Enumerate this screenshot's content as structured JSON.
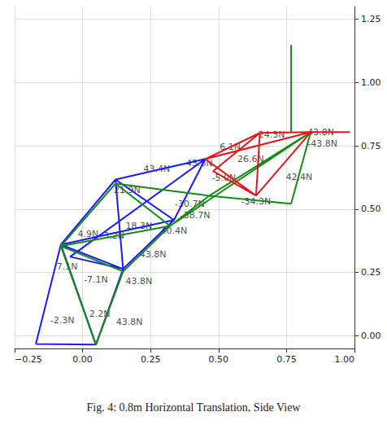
{
  "chart_data": {
    "type": "line",
    "title": "Fig. 4: 0.8m Horizontal Translation, Side View",
    "grid": true,
    "xlim": [
      -0.25,
      1.0
    ],
    "xticks": [
      {
        "value": -0.25,
        "label": "−0.25"
      },
      {
        "value": 0,
        "label": "0.00"
      },
      {
        "value": 0.25,
        "label": "0.25"
      },
      {
        "value": 0.5,
        "label": "0.50"
      },
      {
        "value": 0.75,
        "label": "0.75"
      },
      {
        "value": 1.0,
        "label": "1.00"
      }
    ],
    "ylim": [
      -0.05,
      1.3
    ],
    "yticks": [
      {
        "value": 0,
        "label": "0.00"
      },
      {
        "value": 0.25,
        "label": "0.25"
      },
      {
        "value": 0.5,
        "label": "0.50"
      },
      {
        "value": 0.75,
        "label": "0.75"
      },
      {
        "value": 1.0,
        "label": "1.00"
      },
      {
        "value": 1.25,
        "label": "1.25"
      }
    ],
    "series": [
      {
        "color": "#1a1aff",
        "x": [
          -0.172,
          0.049,
          null,
          -0.172,
          -0.08,
          null,
          0.049,
          -0.08,
          null,
          0.049,
          0.149,
          null,
          -0.08,
          0.149,
          null,
          -0.046,
          0.149,
          null,
          -0.08,
          0.121,
          null,
          0.149,
          0.121,
          null,
          -0.08,
          0.336,
          null,
          0.121,
          0.451,
          null,
          0.121,
          0.336,
          null,
          0.451,
          0.336,
          null,
          0.149,
          0.336,
          null,
          -0.046,
          0.451
        ],
        "values": [
          -0.032,
          -0.035,
          null,
          -0.032,
          0.36,
          null,
          -0.035,
          0.36,
          null,
          -0.035,
          0.264,
          null,
          0.36,
          0.264,
          null,
          0.312,
          0.264,
          null,
          0.36,
          0.617,
          null,
          0.264,
          0.617,
          null,
          0.36,
          0.457,
          null,
          0.617,
          0.698,
          null,
          0.617,
          0.457,
          null,
          0.698,
          0.457,
          null,
          0.264,
          0.457,
          null,
          0.312,
          0.698
        ]
      },
      {
        "color": "#158a15",
        "x": [
          0.049,
          -0.08,
          null,
          0.049,
          0.149,
          null,
          -0.08,
          0.149,
          null,
          -0.08,
          0.121,
          null,
          -0.08,
          0.322,
          null,
          0.149,
          0.322,
          null,
          0.121,
          0.466,
          null,
          0.121,
          0.322,
          null,
          0.466,
          0.322,
          null,
          0.466,
          0.767,
          null,
          0.466,
          0.839,
          null,
          0.767,
          0.839,
          null,
          0.322,
          0.839,
          null,
          0.767,
          0.767
        ],
        "values": [
          -0.035,
          0.354,
          null,
          -0.035,
          0.254,
          null,
          0.354,
          0.254,
          null,
          0.354,
          0.601,
          null,
          0.354,
          0.434,
          null,
          0.254,
          0.434,
          null,
          0.601,
          0.553,
          null,
          0.601,
          0.434,
          null,
          0.553,
          0.434,
          null,
          0.553,
          0.521,
          null,
          0.553,
          0.804,
          null,
          0.521,
          0.804,
          null,
          0.434,
          0.804,
          null,
          1.148,
          0.804
        ]
      },
      {
        "color": "#e8141a",
        "x": [
          0.451,
          0.652,
          null,
          0.652,
          0.839,
          null,
          0.839,
          0.983,
          null,
          0.451,
          0.638,
          null,
          0.652,
          0.638,
          null,
          0.839,
          0.638,
          null,
          0.48,
          0.652,
          null,
          0.48,
          0.638,
          null,
          0.451,
          0.839
        ],
        "values": [
          0.698,
          0.801,
          null,
          0.801,
          0.804,
          null,
          0.804,
          0.804,
          null,
          0.698,
          0.553,
          null,
          0.801,
          0.553,
          null,
          0.804,
          0.553,
          null,
          0.65,
          0.801,
          null,
          0.65,
          0.553,
          null,
          0.698,
          0.804
        ]
      }
    ],
    "annotations": [
      {
        "text": "24.3N",
        "x": 0.695,
        "y": 0.794
      },
      {
        "text": "43.8N",
        "x": 0.876,
        "y": 0.804
      },
      {
        "text": "-43.8N",
        "x": 0.882,
        "y": 0.757
      },
      {
        "text": "6.1N",
        "x": 0.543,
        "y": 0.746
      },
      {
        "text": "26.6N",
        "x": 0.618,
        "y": 0.698
      },
      {
        "text": "43.8N",
        "x": 0.43,
        "y": 0.68
      },
      {
        "text": "-5.0N",
        "x": 0.52,
        "y": 0.625
      },
      {
        "text": "43.4N",
        "x": 0.273,
        "y": 0.659
      },
      {
        "text": "42.4N",
        "x": 0.796,
        "y": 0.627
      },
      {
        "text": "21.9N",
        "x": 0.164,
        "y": 0.576
      },
      {
        "text": "-30.7N",
        "x": 0.394,
        "y": 0.521
      },
      {
        "text": "-38.7N",
        "x": 0.414,
        "y": 0.475
      },
      {
        "text": "-34.3N",
        "x": 0.638,
        "y": 0.531
      },
      {
        "text": "18.3N",
        "x": 0.207,
        "y": 0.434
      },
      {
        "text": "40.4N",
        "x": 0.336,
        "y": 0.415
      },
      {
        "text": "4.9N",
        "x": 0.02,
        "y": 0.402
      },
      {
        "text": "3.2N",
        "x": 0.115,
        "y": 0.395
      },
      {
        "text": "43.8N",
        "x": 0.259,
        "y": 0.322
      },
      {
        "text": "7.1N",
        "x": -0.057,
        "y": 0.273
      },
      {
        "text": "-7.1N",
        "x": 0.049,
        "y": 0.222
      },
      {
        "text": "43.8N",
        "x": 0.207,
        "y": 0.215
      },
      {
        "text": "-2.3N",
        "x": -0.075,
        "y": 0.061
      },
      {
        "text": "2.2N",
        "x": 0.063,
        "y": 0.087
      },
      {
        "text": "43.8N",
        "x": 0.172,
        "y": 0.055
      }
    ]
  }
}
